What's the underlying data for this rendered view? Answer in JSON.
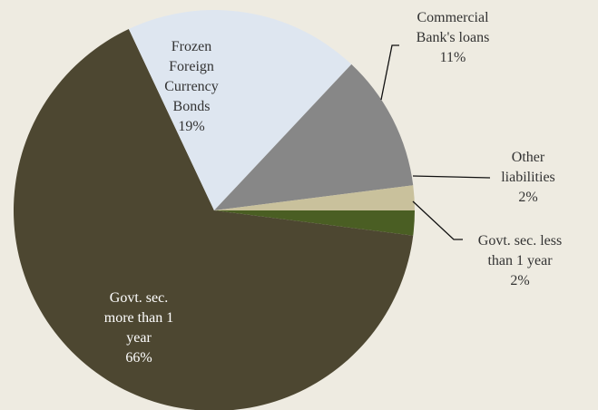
{
  "chart_data": {
    "type": "pie",
    "title": "",
    "slices": [
      {
        "label": "Govt. sec. less than 1 year",
        "label_lines": [
          "Govt. sec. less",
          "than 1 year"
        ],
        "value_label": "2%",
        "value": 2,
        "color": "#4a5e23"
      },
      {
        "label": "Govt. sec. more than 1 year",
        "label_lines": [
          "Govt. sec.",
          "more than 1",
          "year"
        ],
        "value_label": "66%",
        "value": 66,
        "color": "#4d4731"
      },
      {
        "label": "Frozen Foreign Currency Bonds",
        "label_lines": [
          "Frozen",
          "Foreign",
          "Currency",
          "Bonds"
        ],
        "value_label": "19%",
        "value": 19,
        "color": "#dee6f0"
      },
      {
        "label": "Commercial Bank's loans",
        "label_lines": [
          "Commercial",
          "Bank's loans"
        ],
        "value_label": "11%",
        "value": 11,
        "color": "#878787"
      },
      {
        "label": "Other liabilities",
        "label_lines": [
          "Other",
          "liabilities"
        ],
        "value_label": "2%",
        "value": 2,
        "color": "#c9c19c"
      }
    ],
    "legend": "none",
    "data_labels": "category name and percentage"
  },
  "colors": {
    "background": "#eeebe1",
    "label_inside_light": "#ffffff",
    "label_dark": "#333333"
  }
}
